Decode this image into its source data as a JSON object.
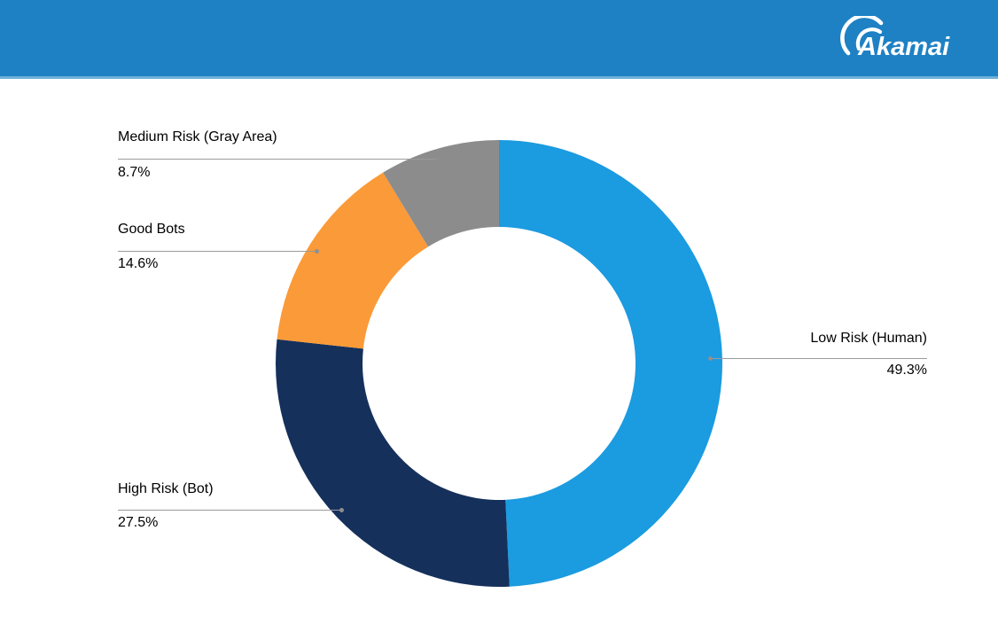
{
  "header": {
    "logo_text": "Akamai",
    "background_color": "#1E81C4"
  },
  "chart_data": {
    "type": "pie",
    "subtype": "donut",
    "direction": "clockwise",
    "start_angle_deg": 0,
    "legend_position": "callouts",
    "callout_line_color": "#9B9B9B",
    "label_text_color": "#3D3D3D",
    "slices": [
      {
        "label": "Low Risk (Human)",
        "value": 49.3,
        "display": "49.3%",
        "color": "#1B9BE0"
      },
      {
        "label": "High Risk (Bot)",
        "value": 27.5,
        "display": "27.5%",
        "color": "#15305B"
      },
      {
        "label": "Good Bots",
        "value": 14.6,
        "display": "14.6%",
        "color": "#FB9A38"
      },
      {
        "label": "Medium Risk (Gray Area)",
        "value": 8.7,
        "display": "8.7%",
        "color": "#8C8C8C"
      }
    ]
  }
}
